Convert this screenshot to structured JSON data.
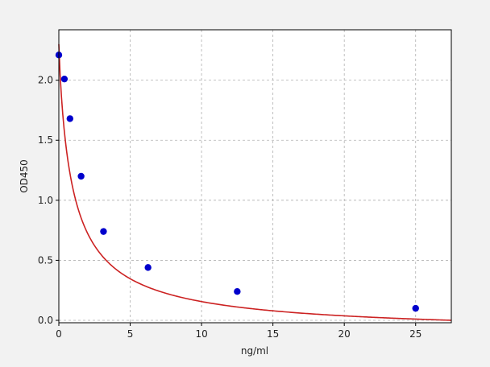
{
  "chart_data": {
    "type": "scatter",
    "xlabel": "ng/ml",
    "ylabel": "OD450",
    "xlim": [
      0,
      27.5
    ],
    "ylim": [
      -0.02,
      2.42
    ],
    "xticks": [
      0,
      5,
      10,
      15,
      20,
      25
    ],
    "xtick_labels": [
      "0",
      "5",
      "10",
      "15",
      "20",
      "25"
    ],
    "yticks": [
      0.0,
      0.5,
      1.0,
      1.5,
      2.0
    ],
    "ytick_labels": [
      "0.0",
      "0.5",
      "1.0",
      "1.5",
      "2.0"
    ],
    "grid": true,
    "series": [
      {
        "kind": "points",
        "x": [
          0,
          0.39,
          0.78,
          1.56,
          3.13,
          6.25,
          12.5,
          25
        ],
        "y": [
          2.21,
          2.01,
          1.68,
          1.2,
          0.74,
          0.44,
          0.24,
          0.1
        ],
        "color": "#0000cc"
      },
      {
        "kind": "fit-curve",
        "model": "4PL",
        "params": {
          "a": 2.3,
          "b": 0.89,
          "c": 1.0,
          "d": -0.12
        },
        "color": "#cc2222"
      }
    ]
  }
}
